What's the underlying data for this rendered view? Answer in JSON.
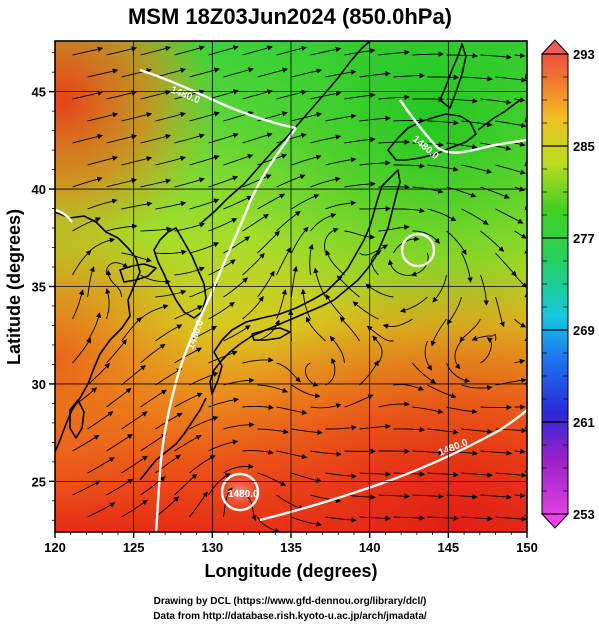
{
  "header": {
    "title": "MSM 18Z03Jun2024 (850.0hPa)"
  },
  "axes": {
    "xlabel": "Longitude (degrees)",
    "ylabel": "Latitude (degrees)",
    "x_ticks": [
      "120",
      "125",
      "130",
      "135",
      "140",
      "145",
      "150"
    ],
    "y_ticks": [
      "25",
      "30",
      "35",
      "40",
      "45"
    ],
    "x_range": [
      120,
      150
    ],
    "y_range": [
      22.4,
      47.6
    ]
  },
  "colorbar": {
    "labels": [
      "293",
      "285",
      "277",
      "269",
      "261",
      "253"
    ],
    "range": [
      253,
      293
    ]
  },
  "contours": {
    "labels": [
      "1480.0",
      "1480.0",
      "1480.0",
      "1480.0",
      "1480.0"
    ]
  },
  "colors": {
    "warm": "#e8321a",
    "cool": "#22c222",
    "contour": "#ffffff",
    "streamline": "#000000"
  },
  "footer": {
    "credit_line1": "Drawing by DCL (https://www.gfd-dennou.org/library/dcl/)",
    "credit_line2": "Data from http://database.rish.kyoto-u.ac.jp/arch/jmadata/"
  }
}
